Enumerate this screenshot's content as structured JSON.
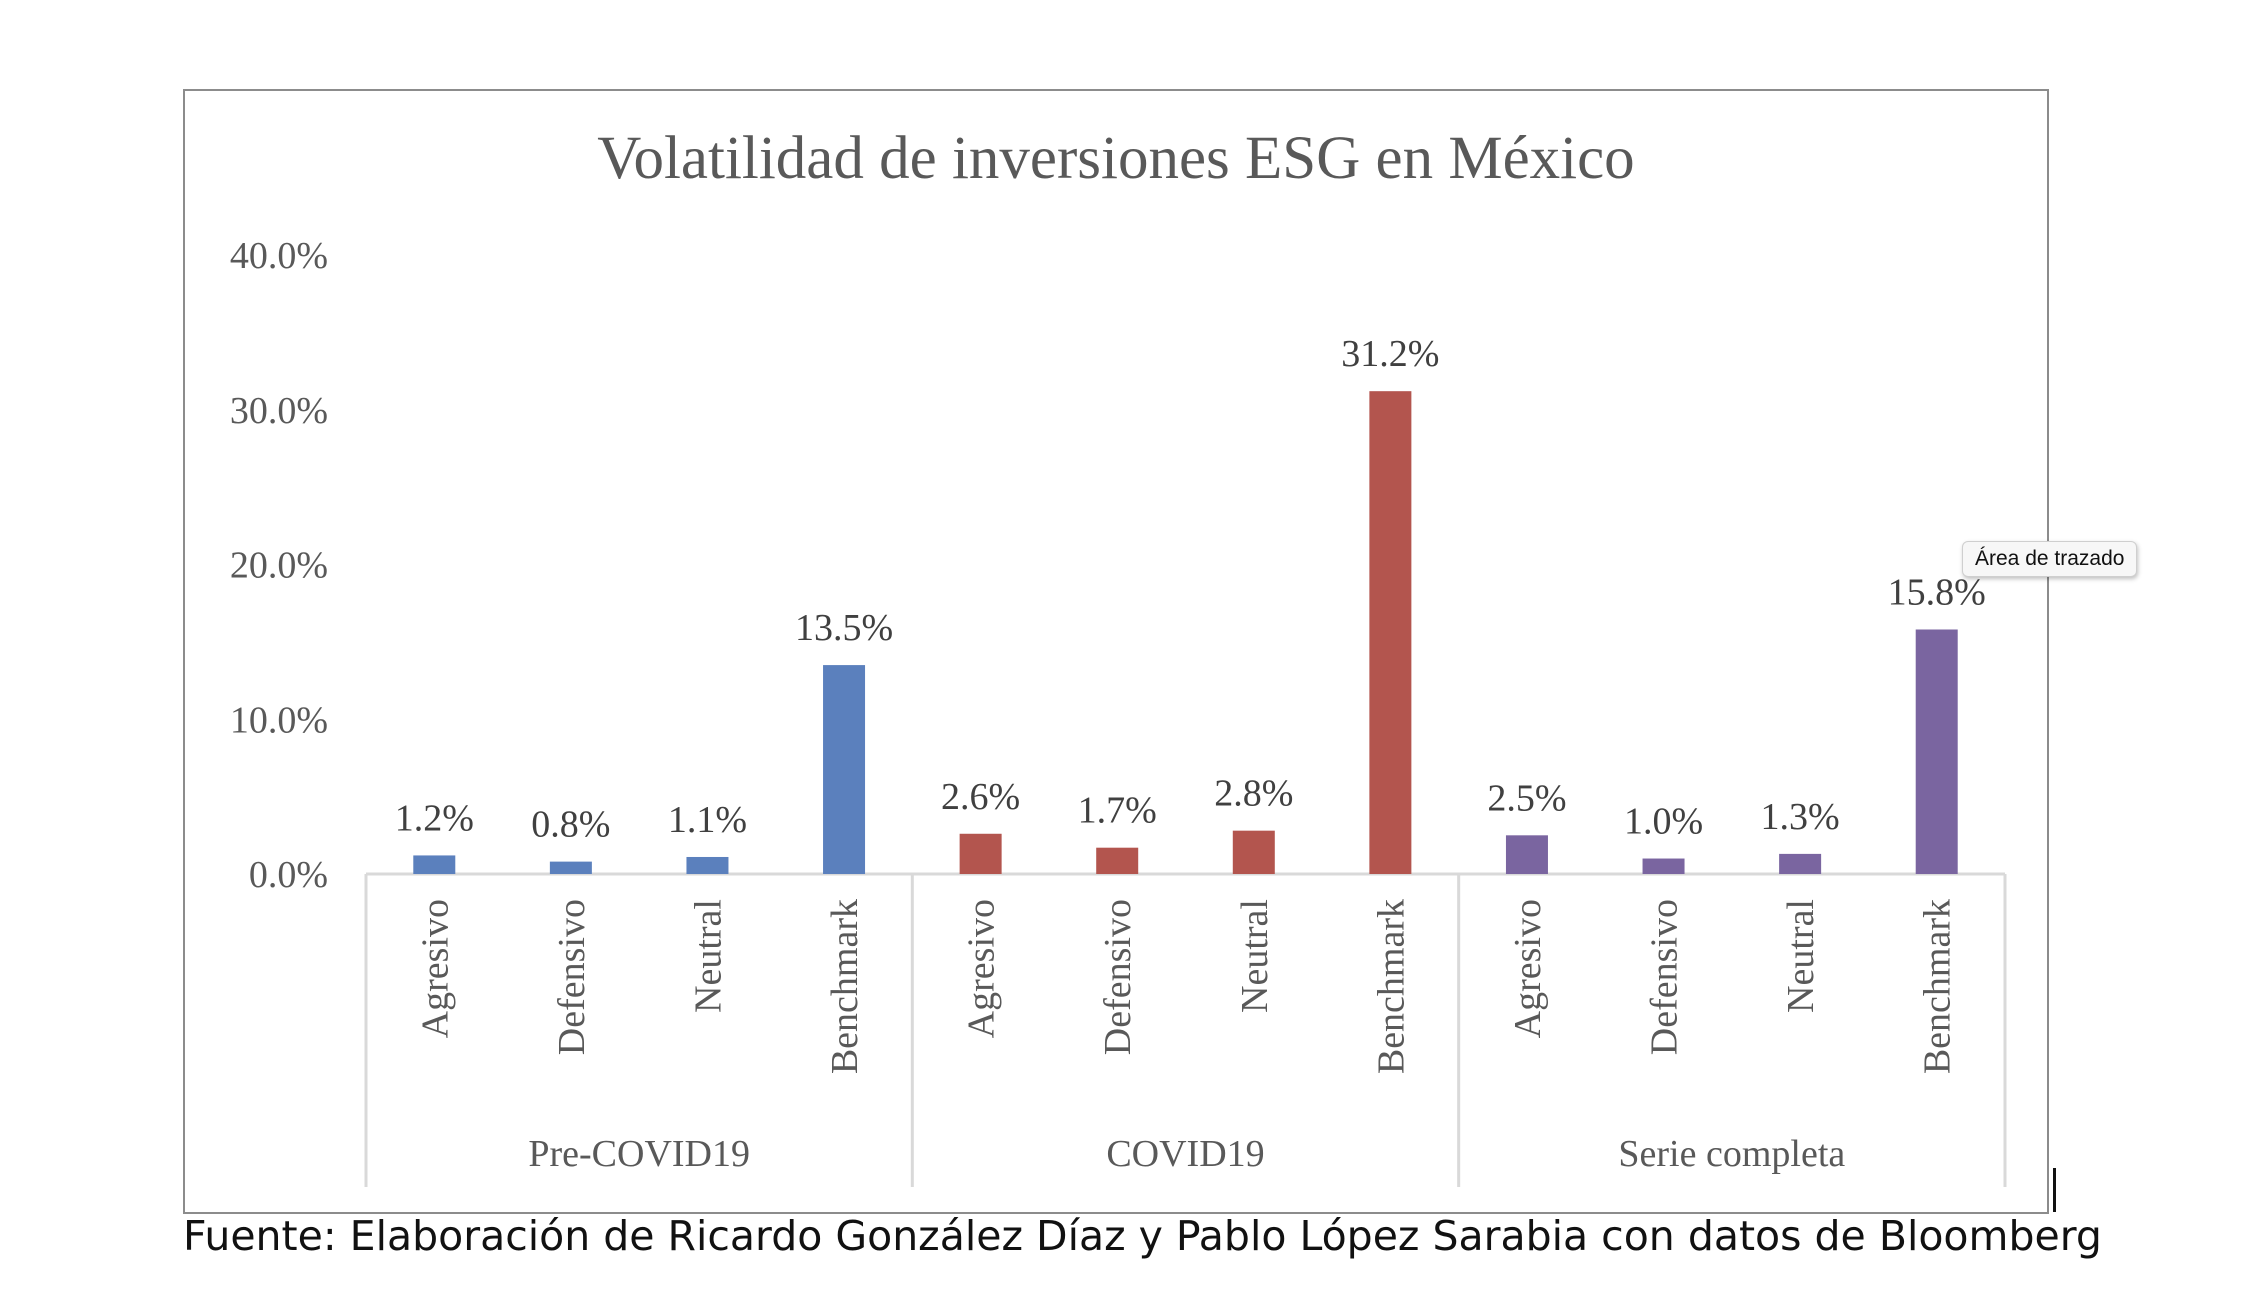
{
  "chart_data": {
    "type": "bar",
    "title": "Volatilidad de inversiones ESG en México",
    "xlabel": "",
    "ylabel": "",
    "ylim": [
      0,
      40
    ],
    "yticks": [
      "0.0%",
      "10.0%",
      "20.0%",
      "30.0%",
      "40.0%"
    ],
    "grid": false,
    "legend": "none",
    "groups": [
      {
        "name": "Pre-COVID19",
        "color": "#5b80bd",
        "categories": [
          "Agresivo",
          "Defensivo",
          "Neutral",
          "Benchmark"
        ],
        "values": [
          1.2,
          0.8,
          1.1,
          13.5
        ],
        "labels": [
          "1.2%",
          "0.8%",
          "1.1%",
          "13.5%"
        ]
      },
      {
        "name": "COVID19",
        "color": "#b3554e",
        "categories": [
          "Agresivo",
          "Defensivo",
          "Neutral",
          "Benchmark"
        ],
        "values": [
          2.6,
          1.7,
          2.8,
          31.2
        ],
        "labels": [
          "2.6%",
          "1.7%",
          "2.8%",
          "31.2%"
        ]
      },
      {
        "name": "Serie completa",
        "color": "#7a65a0",
        "categories": [
          "Agresivo",
          "Defensivo",
          "Neutral",
          "Benchmark"
        ],
        "values": [
          2.5,
          1.0,
          1.3,
          15.8
        ],
        "labels": [
          "2.5%",
          "1.0%",
          "1.3%",
          "15.8%"
        ]
      }
    ]
  },
  "tooltip": "Área de trazado",
  "source_note": "Fuente: Elaboración de Ricardo González Díaz y Pablo López Sarabia con datos de Bloomberg"
}
